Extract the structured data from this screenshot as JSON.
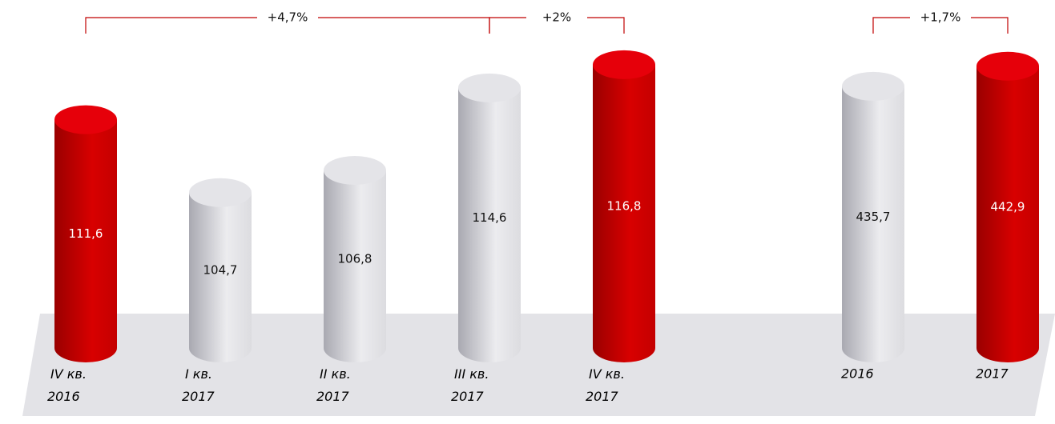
{
  "chart_data": [
    {
      "type": "cylinder",
      "categories": [
        "IV кв. 2016",
        "I кв. 2017",
        "II кв. 2017",
        "III кв. 2017",
        "IV кв. 2017"
      ],
      "values": [
        111.6,
        104.7,
        106.8,
        114.6,
        116.8
      ],
      "value_labels": [
        "111,6",
        "104,7",
        "106,8",
        "114,6",
        "116,8"
      ],
      "colors": [
        "red",
        "gray",
        "gray",
        "gray",
        "red"
      ],
      "ylim": [
        90,
        118
      ],
      "annotations": [
        "+4,7%",
        "+2%"
      ]
    },
    {
      "type": "cylinder",
      "categories": [
        "2016",
        "2017"
      ],
      "values": [
        435.7,
        442.9
      ],
      "value_labels": [
        "435,7",
        "442,9"
      ],
      "colors": [
        "gray",
        "red"
      ],
      "ylim": [
        342,
        448
      ],
      "annotations": [
        "+1,7%"
      ]
    }
  ]
}
